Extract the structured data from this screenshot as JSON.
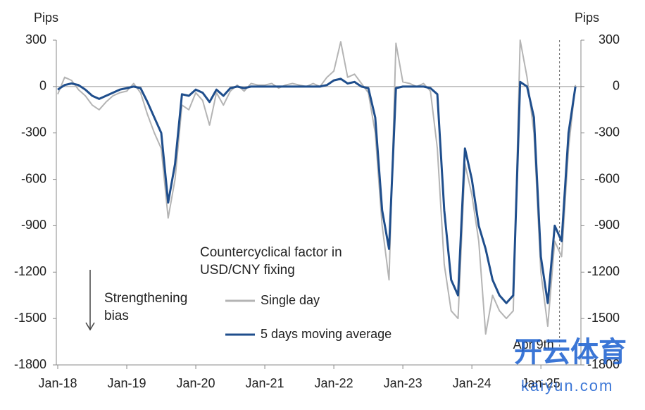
{
  "chart_data": {
    "type": "line",
    "y_label": "Pips",
    "y2_label": "Pips",
    "legend_title": "Countercyclical factor in USD/CNY fixing",
    "annotations": [
      {
        "text": "Strengthening bias"
      },
      {
        "text": "Apr 9th",
        "x": 2025.27
      }
    ],
    "watermark": [
      "开云体育",
      "kaiyun.com"
    ],
    "xlim": [
      2018,
      2025.58
    ],
    "xticks": [
      {
        "value": 2018,
        "label": "Jan-18"
      },
      {
        "value": 2019,
        "label": "Jan-19"
      },
      {
        "value": 2020,
        "label": "Jan-20"
      },
      {
        "value": 2021,
        "label": "Jan-21"
      },
      {
        "value": 2022,
        "label": "Jan-22"
      },
      {
        "value": 2023,
        "label": "Jan-23"
      },
      {
        "value": 2024,
        "label": "Jan-24"
      },
      {
        "value": 2025,
        "label": "Jan-25"
      }
    ],
    "ylim": [
      -1800,
      300
    ],
    "yticks": [
      -1800,
      -1500,
      -1200,
      -900,
      -600,
      -300,
      0,
      300
    ],
    "y2lim": [
      -1800,
      300
    ],
    "y2ticks": [
      -1800,
      -1500,
      -1200,
      -900,
      -600,
      -300,
      0,
      300
    ],
    "x": [
      2018.0,
      2018.1,
      2018.2,
      2018.3,
      2018.4,
      2018.5,
      2018.6,
      2018.7,
      2018.8,
      2018.9,
      2019.0,
      2019.1,
      2019.2,
      2019.3,
      2019.4,
      2019.5,
      2019.6,
      2019.7,
      2019.8,
      2019.9,
      2020.0,
      2020.1,
      2020.2,
      2020.3,
      2020.4,
      2020.5,
      2020.6,
      2020.7,
      2020.8,
      2020.9,
      2021.0,
      2021.1,
      2021.2,
      2021.3,
      2021.4,
      2021.5,
      2021.6,
      2021.7,
      2021.8,
      2021.9,
      2022.0,
      2022.1,
      2022.2,
      2022.3,
      2022.4,
      2022.5,
      2022.6,
      2022.7,
      2022.8,
      2022.9,
      2023.0,
      2023.1,
      2023.2,
      2023.3,
      2023.4,
      2023.5,
      2023.6,
      2023.7,
      2023.8,
      2023.9,
      2024.0,
      2024.1,
      2024.2,
      2024.3,
      2024.4,
      2024.5,
      2024.6,
      2024.7,
      2024.8,
      2024.9,
      2025.0,
      2025.1,
      2025.2,
      2025.3,
      2025.4,
      2025.5
    ],
    "series": [
      {
        "name": "Single day",
        "color": "#b4b4b4",
        "values": [
          -50,
          60,
          40,
          -20,
          -60,
          -120,
          -150,
          -100,
          -60,
          -40,
          -30,
          20,
          -40,
          -180,
          -300,
          -400,
          -850,
          -600,
          -120,
          -150,
          -40,
          -90,
          -250,
          -40,
          -120,
          -30,
          10,
          -30,
          20,
          10,
          10,
          20,
          -10,
          10,
          20,
          10,
          0,
          20,
          0,
          60,
          100,
          290,
          60,
          80,
          20,
          -40,
          -300,
          -900,
          -1250,
          280,
          30,
          20,
          0,
          20,
          -30,
          -400,
          -1150,
          -1450,
          -1500,
          -500,
          -700,
          -1000,
          -1600,
          -1350,
          -1450,
          -1500,
          -1450,
          300,
          60,
          -300,
          -1200,
          -1550,
          -1000,
          -1100,
          -400,
          10
        ]
      },
      {
        "name": "5 days moving average",
        "color": "#1f4e8c",
        "values": [
          -20,
          10,
          20,
          10,
          -20,
          -60,
          -80,
          -60,
          -40,
          -20,
          -10,
          0,
          -10,
          -100,
          -200,
          -300,
          -750,
          -500,
          -50,
          -60,
          -20,
          -40,
          -100,
          -20,
          -60,
          -10,
          0,
          -10,
          0,
          0,
          0,
          0,
          0,
          0,
          0,
          0,
          0,
          0,
          0,
          10,
          40,
          50,
          20,
          30,
          0,
          -10,
          -200,
          -800,
          -1050,
          -10,
          0,
          0,
          0,
          0,
          -10,
          -50,
          -800,
          -1250,
          -1350,
          -400,
          -600,
          -900,
          -1050,
          -1250,
          -1350,
          -1400,
          -1350,
          30,
          0,
          -200,
          -1100,
          -1400,
          -900,
          -1000,
          -300,
          0
        ]
      }
    ]
  }
}
